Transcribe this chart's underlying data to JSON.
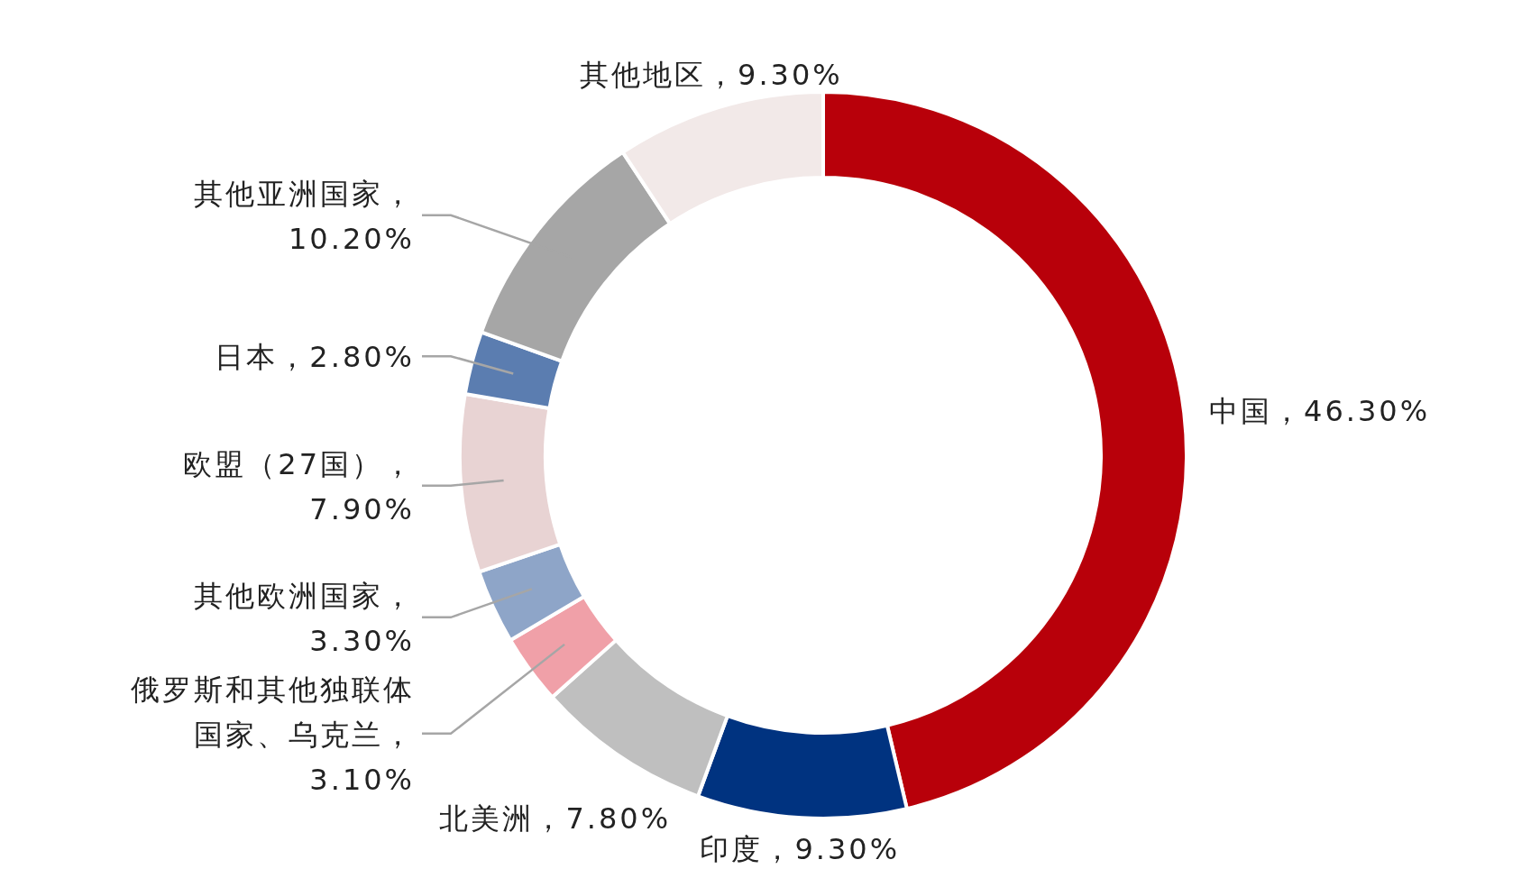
{
  "chart_data": {
    "type": "donut",
    "categories": [
      "中国",
      "印度",
      "北美洲",
      "俄罗斯和其他独联体国家、乌克兰",
      "其他欧洲国家",
      "欧盟（27国）",
      "日本",
      "其他亚洲国家",
      "其他地区"
    ],
    "values": [
      46.3,
      9.3,
      7.8,
      3.1,
      3.3,
      7.9,
      2.8,
      10.2,
      9.3
    ],
    "colors": [
      "#b8000a",
      "#003380",
      "#bfbfbf",
      "#f0a0a8",
      "#8ea5c8",
      "#e8d3d3",
      "#5b7db0",
      "#a6a6a6",
      "#f2e9e8"
    ],
    "value_labels": [
      "，46.30%",
      "，9.30%",
      "，7.80%",
      "，3.10%",
      "，3.30%",
      "，7.90%",
      "，2.80%",
      "，10.20%",
      "，9.30%"
    ]
  }
}
